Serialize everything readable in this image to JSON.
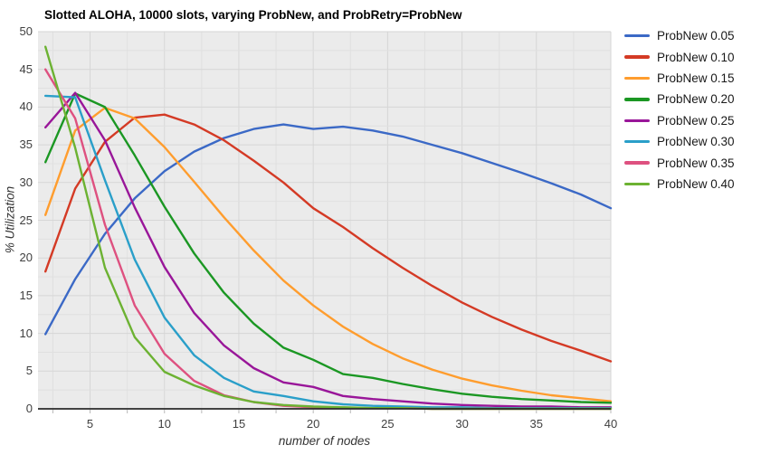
{
  "title": "Slotted ALOHA, 10000 slots, varying ProbNew, and ProbRetry=ProbNew",
  "chart_data": {
    "type": "line",
    "title": "Slotted ALOHA, 10000 slots, varying ProbNew, and ProbRetry=ProbNew",
    "xlabel": "number of nodes",
    "ylabel": "% Utilization",
    "xlim": [
      1.5,
      40
    ],
    "ylim": [
      0,
      50
    ],
    "x_ticks": [
      5,
      10,
      15,
      20,
      25,
      30,
      35,
      40
    ],
    "y_ticks": [
      0,
      5,
      10,
      15,
      20,
      25,
      30,
      35,
      40,
      45,
      50
    ],
    "minor_grid_step": 2.5,
    "grid": true,
    "legend_position": "right",
    "plot_background": "#ebebeb",
    "major_grid_color": "#d6d6d6",
    "minor_grid_color": "#e0e0e0",
    "axis_line_color": "#2a2a2a",
    "tick_mark_color": "#b8b8b8",
    "x": [
      2,
      4,
      6,
      8,
      10,
      12,
      14,
      16,
      18,
      20,
      22,
      24,
      26,
      28,
      30,
      32,
      34,
      36,
      38,
      40
    ],
    "series": [
      {
        "name": "ProbNew 0.05",
        "color": "#3b69c6",
        "values": [
          9.9,
          17.2,
          23.2,
          27.9,
          31.5,
          34.1,
          35.9,
          37.1,
          37.7,
          37.1,
          37.4,
          36.9,
          36.1,
          35.0,
          33.9,
          32.6,
          31.3,
          29.9,
          28.4,
          26.6
        ]
      },
      {
        "name": "ProbNew 0.10",
        "color": "#d43a25",
        "values": [
          18.2,
          29.2,
          35.4,
          38.6,
          39.0,
          37.7,
          35.6,
          32.9,
          30.0,
          26.6,
          24.1,
          21.3,
          18.7,
          16.3,
          14.1,
          12.2,
          10.5,
          9.0,
          7.7,
          6.3
        ]
      },
      {
        "name": "ProbNew 0.15",
        "color": "#ff9d2e",
        "values": [
          25.7,
          36.9,
          39.9,
          38.5,
          34.7,
          30.1,
          25.4,
          21.0,
          17.0,
          13.7,
          10.9,
          8.6,
          6.7,
          5.2,
          4.0,
          3.1,
          2.4,
          1.8,
          1.4,
          1.0
        ]
      },
      {
        "name": "ProbNew 0.20",
        "color": "#1b9723",
        "values": [
          32.7,
          41.8,
          40.0,
          33.6,
          26.8,
          20.6,
          15.4,
          11.3,
          8.1,
          6.5,
          4.6,
          4.1,
          3.3,
          2.6,
          2.0,
          1.6,
          1.3,
          1.1,
          0.9,
          0.8
        ]
      },
      {
        "name": "ProbNew 0.25",
        "color": "#991699",
        "values": [
          37.3,
          41.9,
          35.6,
          26.7,
          18.8,
          12.7,
          8.4,
          5.4,
          3.5,
          2.9,
          1.7,
          1.3,
          1.0,
          0.7,
          0.5,
          0.4,
          0.3,
          0.3,
          0.2,
          0.2
        ]
      },
      {
        "name": "ProbNew 0.30",
        "color": "#2a9fc9",
        "values": [
          41.5,
          41.3,
          30.3,
          19.8,
          12.1,
          7.1,
          4.1,
          2.3,
          1.7,
          1.0,
          0.6,
          0.4,
          0.3,
          0.2,
          0.2,
          0.1,
          0.1,
          0.1,
          0.1,
          0.1
        ]
      },
      {
        "name": "ProbNew 0.35",
        "color": "#de5180",
        "values": [
          45.0,
          38.5,
          24.4,
          13.7,
          7.3,
          3.7,
          1.8,
          0.9,
          0.4,
          0.2,
          0.1,
          0.1,
          0.1,
          0.0,
          0.0,
          0.0,
          0.0,
          0.0,
          0.0,
          0.0
        ]
      },
      {
        "name": "ProbNew 0.40",
        "color": "#6cb232",
        "values": [
          48.0,
          34.6,
          18.7,
          9.5,
          4.9,
          3.1,
          1.7,
          0.9,
          0.5,
          0.3,
          0.2,
          0.1,
          0.1,
          0.0,
          0.0,
          0.0,
          0.0,
          0.0,
          0.0,
          0.0
        ]
      }
    ]
  }
}
